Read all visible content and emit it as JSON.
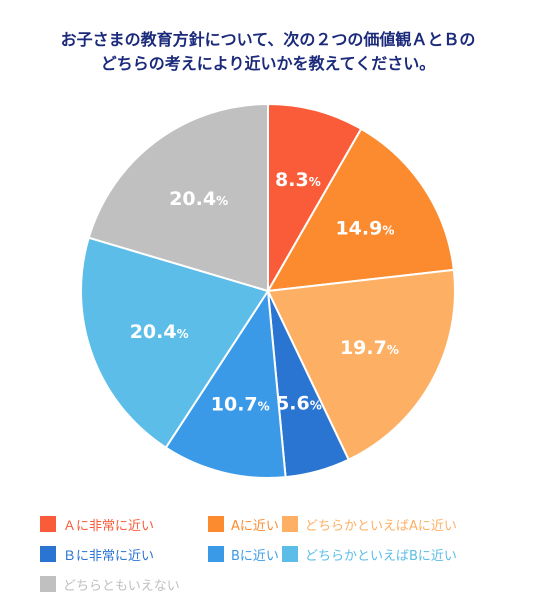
{
  "title_line1": "お子さまの教育方針について、次の２つの価値観ＡとＢの",
  "title_line2": "どちらの考えにより近いかを教えてください。",
  "chart_data": {
    "type": "pie",
    "start": "12 o'clock, clockwise",
    "slices": [
      {
        "label": "Ａに非常に近い",
        "value": 8.3,
        "display": "8.3",
        "color": "#fa5c3a"
      },
      {
        "label": "Aに近い",
        "value": 14.9,
        "display": "14.9",
        "color": "#fb8b2e"
      },
      {
        "label": "どちらかといえばAに近い",
        "value": 19.7,
        "display": "19.7",
        "color": "#fdb064"
      },
      {
        "label": "Ｂに非常に近い",
        "value": 5.6,
        "display": "5.6",
        "color": "#2a74d2"
      },
      {
        "label": "Bに近い",
        "value": 10.7,
        "display": "10.7",
        "color": "#3b9ae8"
      },
      {
        "label": "どちらかといえばBに近い",
        "value": 20.4,
        "display": "20.4",
        "color": "#5bbde8"
      },
      {
        "label": "どちらともいえない",
        "value": 20.4,
        "display": "20.4",
        "color": "#c0c0c0"
      }
    ],
    "unit": "%",
    "legend_placement": "bottom"
  }
}
